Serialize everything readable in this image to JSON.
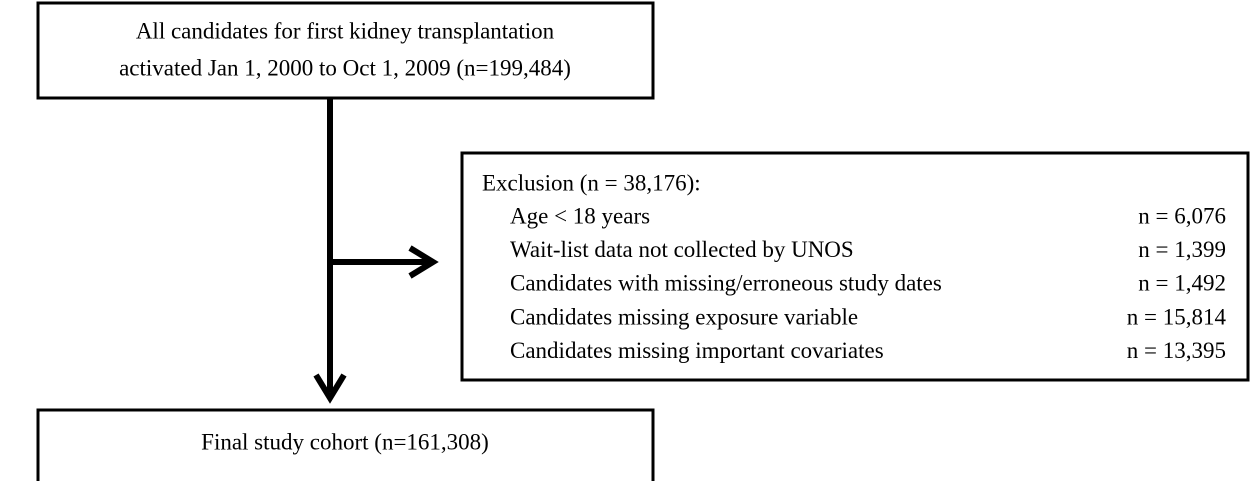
{
  "nodes": [
    {
      "label": [
        "All candidates for first kidney transplantation",
        "activated Jan 1, 2000 to Oct 1, 2009 (n=199,484)"
      ]
    },
    {
      "label": [
        "Final study cohort (n=161,308)"
      ]
    }
  ],
  "exclusion": {
    "title": "Exclusion (n = 38,176):",
    "items": [
      {
        "label": "Age < 18 years",
        "count": "n = 6,076"
      },
      {
        "label": "Wait-list data not collected by UNOS",
        "count": "n = 1,399"
      },
      {
        "label": "Candidates with missing/erroneous study dates",
        "count": "n = 1,492"
      },
      {
        "label": "Candidates missing exposure variable",
        "count": "n = 15,814"
      },
      {
        "label": "Candidates missing important covariates",
        "count": "n = 13,395"
      }
    ]
  }
}
